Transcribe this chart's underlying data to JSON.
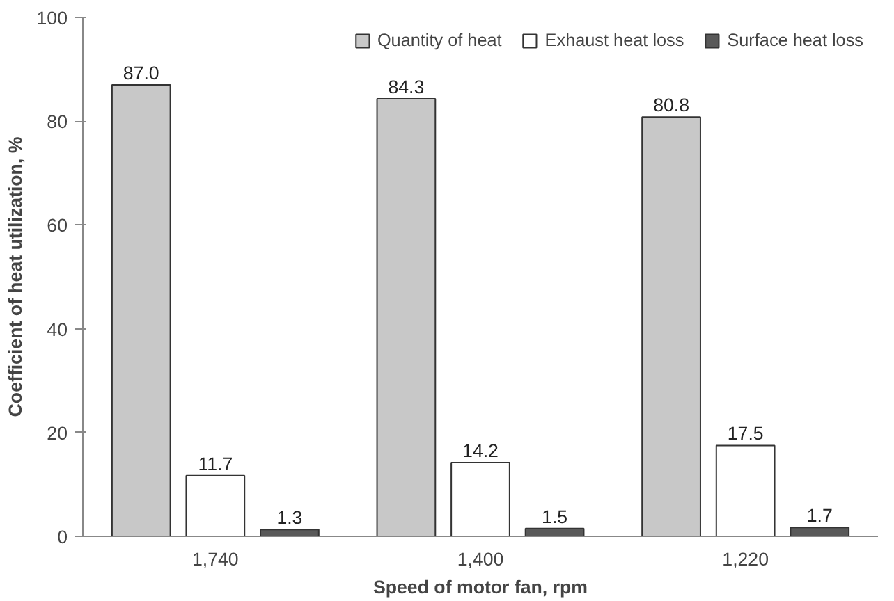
{
  "chart_data": {
    "type": "bar",
    "xlabel": "Speed of motor fan, rpm",
    "ylabel": "Coefficient of heat utilization, %",
    "categories": [
      "1,740",
      "1,400",
      "1,220"
    ],
    "series": [
      {
        "name": "Quantity of heat",
        "color": "#c8c8c8",
        "values": [
          87.0,
          84.3,
          80.8
        ],
        "value_labels": [
          "87.0",
          "84.3",
          "80.8"
        ]
      },
      {
        "name": "Exhaust heat loss",
        "color": "#ffffff",
        "values": [
          11.7,
          14.2,
          17.5
        ],
        "value_labels": [
          "11.7",
          "14.2",
          "17.5"
        ]
      },
      {
        "name": "Surface heat loss",
        "color": "#595959",
        "values": [
          1.3,
          1.5,
          1.7
        ],
        "value_labels": [
          "1.3",
          "1.5",
          "1.7"
        ]
      }
    ],
    "ylim": [
      0,
      100
    ],
    "yticks": [
      0,
      20,
      40,
      60,
      80,
      100
    ],
    "grid": false,
    "legend": "top right"
  }
}
